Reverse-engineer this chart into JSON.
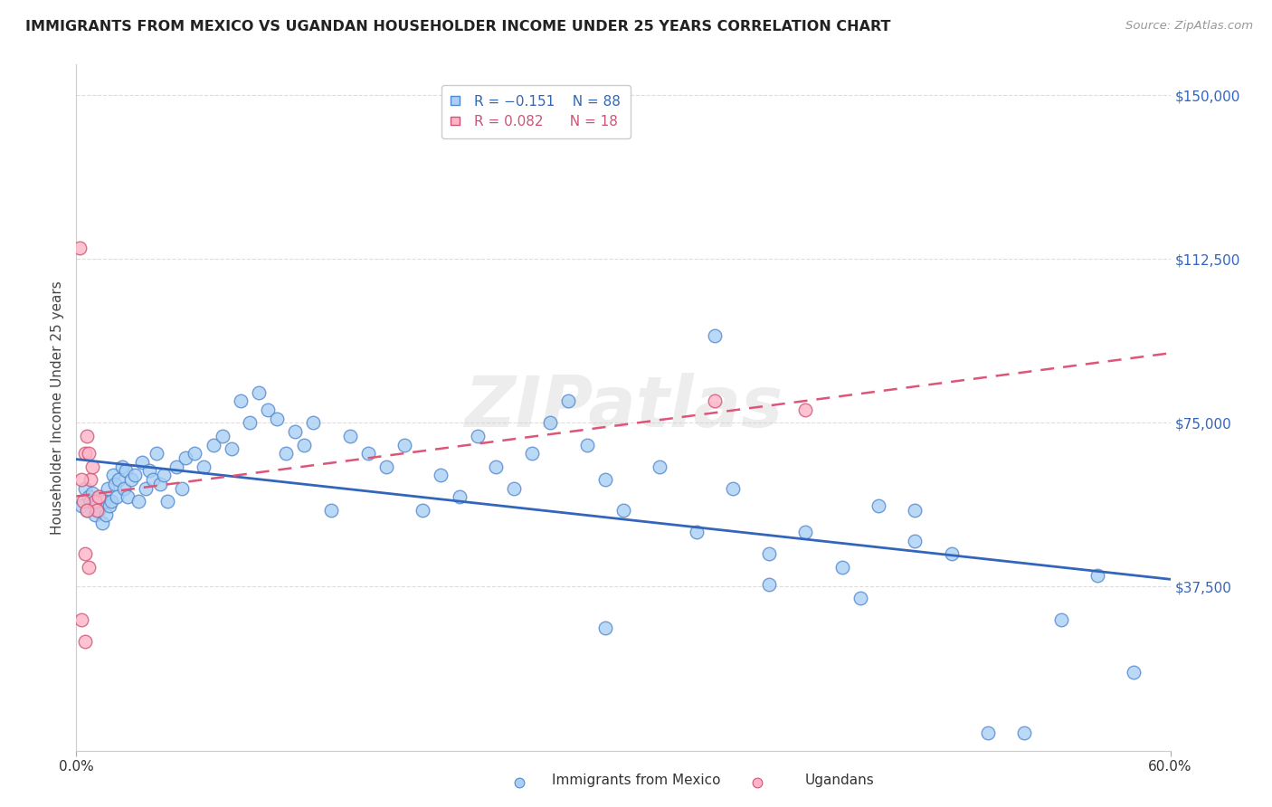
{
  "title": "IMMIGRANTS FROM MEXICO VS UGANDAN HOUSEHOLDER INCOME UNDER 25 YEARS CORRELATION CHART",
  "source": "Source: ZipAtlas.com",
  "ylabel": "Householder Income Under 25 years",
  "y_ticks": [
    0,
    37500,
    75000,
    112500,
    150000
  ],
  "y_tick_labels": [
    "",
    "$37,500",
    "$75,000",
    "$112,500",
    "$150,000"
  ],
  "x_range": [
    0.0,
    0.6
  ],
  "y_range": [
    0,
    157000
  ],
  "color_mexico": "#a8d0f5",
  "color_mexico_edge": "#5588cc",
  "color_uganda": "#ffb3c6",
  "color_uganda_edge": "#cc5577",
  "color_mexico_line": "#3366bb",
  "color_uganda_line": "#dd5577",
  "color_ytick": "#3366bb",
  "color_grid": "#dddddd",
  "watermark": "ZIPatlas",
  "mexico_x": [
    0.003,
    0.005,
    0.006,
    0.007,
    0.008,
    0.009,
    0.01,
    0.011,
    0.012,
    0.013,
    0.014,
    0.015,
    0.016,
    0.017,
    0.018,
    0.019,
    0.02,
    0.021,
    0.022,
    0.023,
    0.025,
    0.026,
    0.027,
    0.028,
    0.03,
    0.032,
    0.034,
    0.036,
    0.038,
    0.04,
    0.042,
    0.044,
    0.046,
    0.048,
    0.05,
    0.055,
    0.058,
    0.06,
    0.065,
    0.07,
    0.075,
    0.08,
    0.085,
    0.09,
    0.095,
    0.1,
    0.105,
    0.11,
    0.115,
    0.12,
    0.125,
    0.13,
    0.14,
    0.15,
    0.16,
    0.17,
    0.18,
    0.19,
    0.2,
    0.21,
    0.22,
    0.23,
    0.24,
    0.25,
    0.26,
    0.27,
    0.28,
    0.29,
    0.3,
    0.32,
    0.34,
    0.36,
    0.38,
    0.4,
    0.42,
    0.44,
    0.46,
    0.48,
    0.5,
    0.52,
    0.54,
    0.56,
    0.35,
    0.46,
    0.38,
    0.29,
    0.43,
    0.58
  ],
  "mexico_y": [
    56000,
    60000,
    55000,
    58000,
    57000,
    59000,
    54000,
    56000,
    55000,
    58000,
    52000,
    57000,
    54000,
    60000,
    56000,
    57000,
    63000,
    61000,
    58000,
    62000,
    65000,
    60000,
    64000,
    58000,
    62000,
    63000,
    57000,
    66000,
    60000,
    64000,
    62000,
    68000,
    61000,
    63000,
    57000,
    65000,
    60000,
    67000,
    68000,
    65000,
    70000,
    72000,
    69000,
    80000,
    75000,
    82000,
    78000,
    76000,
    68000,
    73000,
    70000,
    75000,
    55000,
    72000,
    68000,
    65000,
    70000,
    55000,
    63000,
    58000,
    72000,
    65000,
    60000,
    68000,
    75000,
    80000,
    70000,
    62000,
    55000,
    65000,
    50000,
    60000,
    45000,
    50000,
    42000,
    56000,
    48000,
    45000,
    4000,
    4000,
    30000,
    40000,
    95000,
    55000,
    38000,
    28000,
    35000,
    18000
  ],
  "uganda_x": [
    0.002,
    0.005,
    0.006,
    0.007,
    0.008,
    0.009,
    0.01,
    0.011,
    0.012,
    0.005,
    0.007,
    0.004,
    0.003,
    0.005,
    0.006,
    0.003,
    0.35,
    0.4
  ],
  "uganda_y": [
    115000,
    68000,
    72000,
    68000,
    62000,
    65000,
    57000,
    55000,
    58000,
    45000,
    42000,
    57000,
    30000,
    25000,
    55000,
    62000,
    80000,
    78000
  ]
}
